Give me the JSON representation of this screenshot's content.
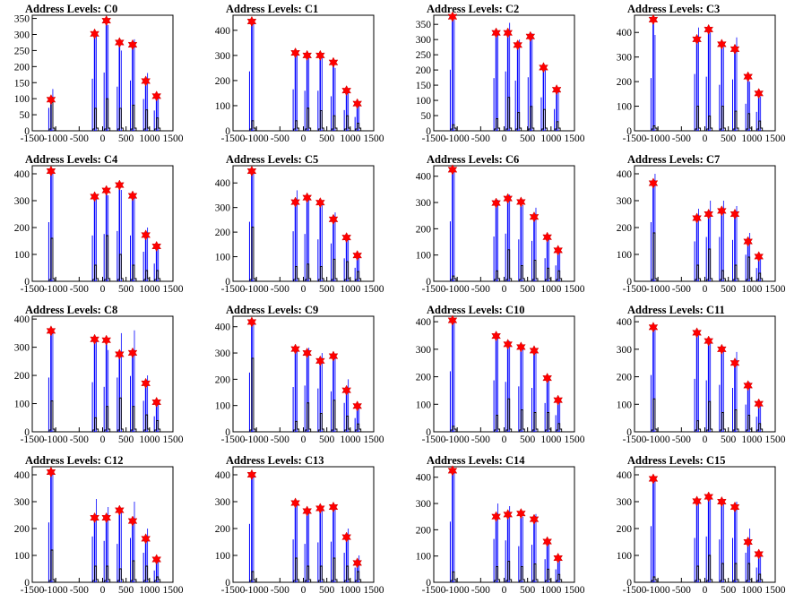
{
  "figure": {
    "title_prefix": "Address Levels: "
  },
  "style": {
    "histogram_color": "#0000ff",
    "overlay_color": "#000000",
    "marker_color": "#ff0000",
    "marker_outline": "#cc0000"
  },
  "x_ticks": [
    "-1500",
    "-1000",
    "-500",
    "0",
    "500",
    "1000",
    "1500"
  ],
  "x_range": [
    -1500,
    1500
  ],
  "chart_data": [
    {
      "name": "C0",
      "type": "bar",
      "title": "Address Levels: C0",
      "xlim": [
        -1500,
        1500
      ],
      "ylim": [
        0,
        360
      ],
      "yticks": [
        0,
        50,
        100,
        150,
        200,
        250,
        300,
        350
      ],
      "peaks": [
        -1100,
        -170,
        80,
        360,
        640,
        920,
        1150
      ],
      "values": [
        97,
        302,
        343,
        275,
        268,
        155,
        108
      ],
      "secondary": [
        130,
        295,
        330,
        250,
        285,
        180,
        115
      ],
      "overlay": [
        90,
        70,
        100,
        70,
        80,
        65,
        40
      ]
    },
    {
      "name": "C1",
      "type": "bar",
      "title": "Address Levels: C1",
      "xlim": [
        -1500,
        1500
      ],
      "ylim": [
        0,
        460
      ],
      "yticks": [
        0,
        100,
        200,
        300,
        400
      ],
      "peaks": [
        -1100,
        -170,
        80,
        360,
        640,
        920,
        1150
      ],
      "values": [
        435,
        310,
        300,
        300,
        272,
        160,
        108
      ],
      "secondary": [
        430,
        300,
        290,
        290,
        250,
        150,
        100
      ],
      "overlay": [
        40,
        40,
        90,
        80,
        60,
        60,
        30
      ]
    },
    {
      "name": "C2",
      "type": "bar",
      "title": "Address Levels: C2",
      "xlim": [
        -1500,
        1500
      ],
      "ylim": [
        0,
        380
      ],
      "yticks": [
        0,
        50,
        100,
        150,
        200,
        250,
        300,
        350
      ],
      "peaks": [
        -1100,
        -170,
        80,
        290,
        560,
        840,
        1120
      ],
      "values": [
        375,
        322,
        322,
        282,
        310,
        208,
        135
      ],
      "secondary": [
        365,
        315,
        355,
        300,
        320,
        200,
        130
      ],
      "overlay": [
        20,
        40,
        110,
        60,
        80,
        70,
        30
      ]
    },
    {
      "name": "C3",
      "type": "bar",
      "title": "Address Levels: C3",
      "xlim": [
        -1500,
        1500
      ],
      "ylim": [
        0,
        470
      ],
      "yticks": [
        0,
        100,
        200,
        300,
        400
      ],
      "peaks": [
        -1100,
        -170,
        80,
        360,
        640,
        920,
        1150
      ],
      "values": [
        452,
        372,
        412,
        352,
        332,
        220,
        152
      ],
      "secondary": [
        390,
        420,
        400,
        340,
        380,
        200,
        140
      ],
      "overlay": [
        20,
        100,
        60,
        100,
        80,
        70,
        40
      ]
    },
    {
      "name": "C4",
      "type": "bar",
      "title": "Address Levels: C4",
      "xlim": [
        -1500,
        1500
      ],
      "ylim": [
        0,
        430
      ],
      "yticks": [
        0,
        100,
        200,
        300,
        400
      ],
      "peaks": [
        -1100,
        -170,
        80,
        360,
        640,
        920,
        1150
      ],
      "values": [
        410,
        315,
        338,
        358,
        318,
        172,
        130
      ],
      "secondary": [
        400,
        310,
        320,
        340,
        310,
        200,
        120
      ],
      "overlay": [
        160,
        60,
        170,
        100,
        60,
        40,
        40
      ]
    },
    {
      "name": "C5",
      "type": "bar",
      "title": "Address Levels: C5",
      "xlim": [
        -1500,
        1500
      ],
      "ylim": [
        0,
        470
      ],
      "yticks": [
        0,
        100,
        200,
        300,
        400
      ],
      "peaks": [
        -1100,
        -170,
        80,
        360,
        640,
        920,
        1150
      ],
      "values": [
        448,
        322,
        340,
        320,
        252,
        178,
        105
      ],
      "secondary": [
        440,
        370,
        350,
        310,
        280,
        170,
        100
      ],
      "overlay": [
        220,
        60,
        70,
        60,
        90,
        80,
        40
      ]
    },
    {
      "name": "C6",
      "type": "bar",
      "title": "Address Levels: C6",
      "xlim": [
        -1500,
        1500
      ],
      "ylim": [
        0,
        440
      ],
      "yticks": [
        0,
        100,
        200,
        300,
        400
      ],
      "peaks": [
        -1100,
        -170,
        80,
        360,
        640,
        920,
        1150
      ],
      "values": [
        425,
        298,
        315,
        302,
        245,
        168,
        118
      ],
      "secondary": [
        415,
        310,
        330,
        290,
        280,
        160,
        110
      ],
      "overlay": [
        20,
        40,
        120,
        60,
        80,
        50,
        40
      ]
    },
    {
      "name": "C7",
      "type": "bar",
      "title": "Address Levels: C7",
      "xlim": [
        -1500,
        1500
      ],
      "ylim": [
        0,
        430
      ],
      "yticks": [
        0,
        100,
        200,
        300,
        400
      ],
      "peaks": [
        -1100,
        -170,
        80,
        360,
        640,
        920,
        1150
      ],
      "values": [
        365,
        235,
        250,
        262,
        250,
        148,
        92
      ],
      "secondary": [
        400,
        270,
        300,
        300,
        280,
        180,
        90
      ],
      "overlay": [
        180,
        60,
        120,
        40,
        60,
        90,
        30
      ]
    },
    {
      "name": "C8",
      "type": "bar",
      "title": "Address Levels: C8",
      "xlim": [
        -1500,
        1500
      ],
      "ylim": [
        0,
        410
      ],
      "yticks": [
        0,
        100,
        200,
        300,
        400
      ],
      "peaks": [
        -1100,
        -170,
        80,
        360,
        640,
        920,
        1150
      ],
      "values": [
        358,
        328,
        325,
        275,
        280,
        172,
        105
      ],
      "secondary": [
        350,
        320,
        290,
        350,
        360,
        200,
        100
      ],
      "overlay": [
        110,
        50,
        90,
        120,
        90,
        60,
        40
      ]
    },
    {
      "name": "C9",
      "type": "bar",
      "title": "Address Levels: C9",
      "xlim": [
        -1500,
        1500
      ],
      "ylim": [
        0,
        440
      ],
      "yticks": [
        0,
        100,
        200,
        300,
        400
      ],
      "peaks": [
        -1100,
        -170,
        80,
        360,
        640,
        920,
        1150
      ],
      "values": [
        418,
        315,
        300,
        270,
        288,
        158,
        98
      ],
      "secondary": [
        410,
        310,
        320,
        300,
        280,
        200,
        95
      ],
      "overlay": [
        280,
        40,
        110,
        70,
        120,
        60,
        30
      ]
    },
    {
      "name": "C10",
      "type": "bar",
      "title": "Address Levels: C10",
      "xlim": [
        -1500,
        1500
      ],
      "ylim": [
        0,
        420
      ],
      "yticks": [
        0,
        100,
        200,
        300,
        400
      ],
      "peaks": [
        -1100,
        -170,
        80,
        360,
        640,
        920,
        1150
      ],
      "values": [
        405,
        348,
        318,
        308,
        295,
        195,
        115
      ],
      "secondary": [
        400,
        340,
        330,
        300,
        290,
        190,
        110
      ],
      "overlay": [
        20,
        60,
        120,
        80,
        70,
        70,
        30
      ]
    },
    {
      "name": "C11",
      "type": "bar",
      "title": "Address Levels: C11",
      "xlim": [
        -1500,
        1500
      ],
      "ylim": [
        0,
        420
      ],
      "yticks": [
        0,
        100,
        200,
        300,
        400
      ],
      "peaks": [
        -1100,
        -170,
        80,
        360,
        640,
        920,
        1150
      ],
      "values": [
        380,
        360,
        330,
        300,
        250,
        168,
        102
      ],
      "secondary": [
        375,
        350,
        340,
        310,
        290,
        180,
        100
      ],
      "overlay": [
        120,
        40,
        110,
        70,
        80,
        60,
        30
      ]
    },
    {
      "name": "C12",
      "type": "bar",
      "title": "Address Levels: C12",
      "xlim": [
        -1500,
        1500
      ],
      "ylim": [
        0,
        430
      ],
      "yticks": [
        0,
        100,
        200,
        300,
        400
      ],
      "peaks": [
        -1100,
        -170,
        80,
        360,
        640,
        920,
        1150
      ],
      "values": [
        410,
        240,
        240,
        268,
        228,
        162,
        85
      ],
      "secondary": [
        405,
        310,
        280,
        260,
        300,
        200,
        80
      ],
      "overlay": [
        120,
        60,
        60,
        50,
        80,
        60,
        20
      ]
    },
    {
      "name": "C13",
      "type": "bar",
      "title": "Address Levels: C13",
      "xlim": [
        -1500,
        1500
      ],
      "ylim": [
        0,
        430
      ],
      "yticks": [
        0,
        100,
        200,
        300,
        400
      ],
      "peaks": [
        -1100,
        -170,
        80,
        360,
        640,
        920,
        1150
      ],
      "values": [
        400,
        295,
        265,
        275,
        280,
        168,
        72
      ],
      "secondary": [
        395,
        290,
        260,
        270,
        275,
        200,
        100
      ],
      "overlay": [
        40,
        90,
        60,
        60,
        90,
        60,
        40
      ]
    },
    {
      "name": "C14",
      "type": "bar",
      "title": "Address Levels: C14",
      "xlim": [
        -1500,
        1500
      ],
      "ylim": [
        0,
        440
      ],
      "yticks": [
        0,
        100,
        200,
        300,
        400
      ],
      "peaks": [
        -1100,
        -170,
        80,
        360,
        640,
        920,
        1150
      ],
      "values": [
        425,
        250,
        258,
        262,
        240,
        155,
        92
      ],
      "secondary": [
        420,
        300,
        290,
        250,
        260,
        160,
        90
      ],
      "overlay": [
        40,
        60,
        80,
        60,
        70,
        50,
        30
      ]
    },
    {
      "name": "C15",
      "type": "bar",
      "title": "Address Levels: C15",
      "xlim": [
        -1500,
        1500
      ],
      "ylim": [
        0,
        430
      ],
      "yticks": [
        0,
        100,
        200,
        300,
        400
      ],
      "peaks": [
        -1100,
        -170,
        80,
        360,
        640,
        920,
        1150
      ],
      "values": [
        385,
        302,
        318,
        300,
        280,
        150,
        105
      ],
      "secondary": [
        380,
        300,
        310,
        290,
        300,
        200,
        100
      ],
      "overlay": [
        20,
        60,
        100,
        70,
        70,
        70,
        30
      ]
    }
  ]
}
